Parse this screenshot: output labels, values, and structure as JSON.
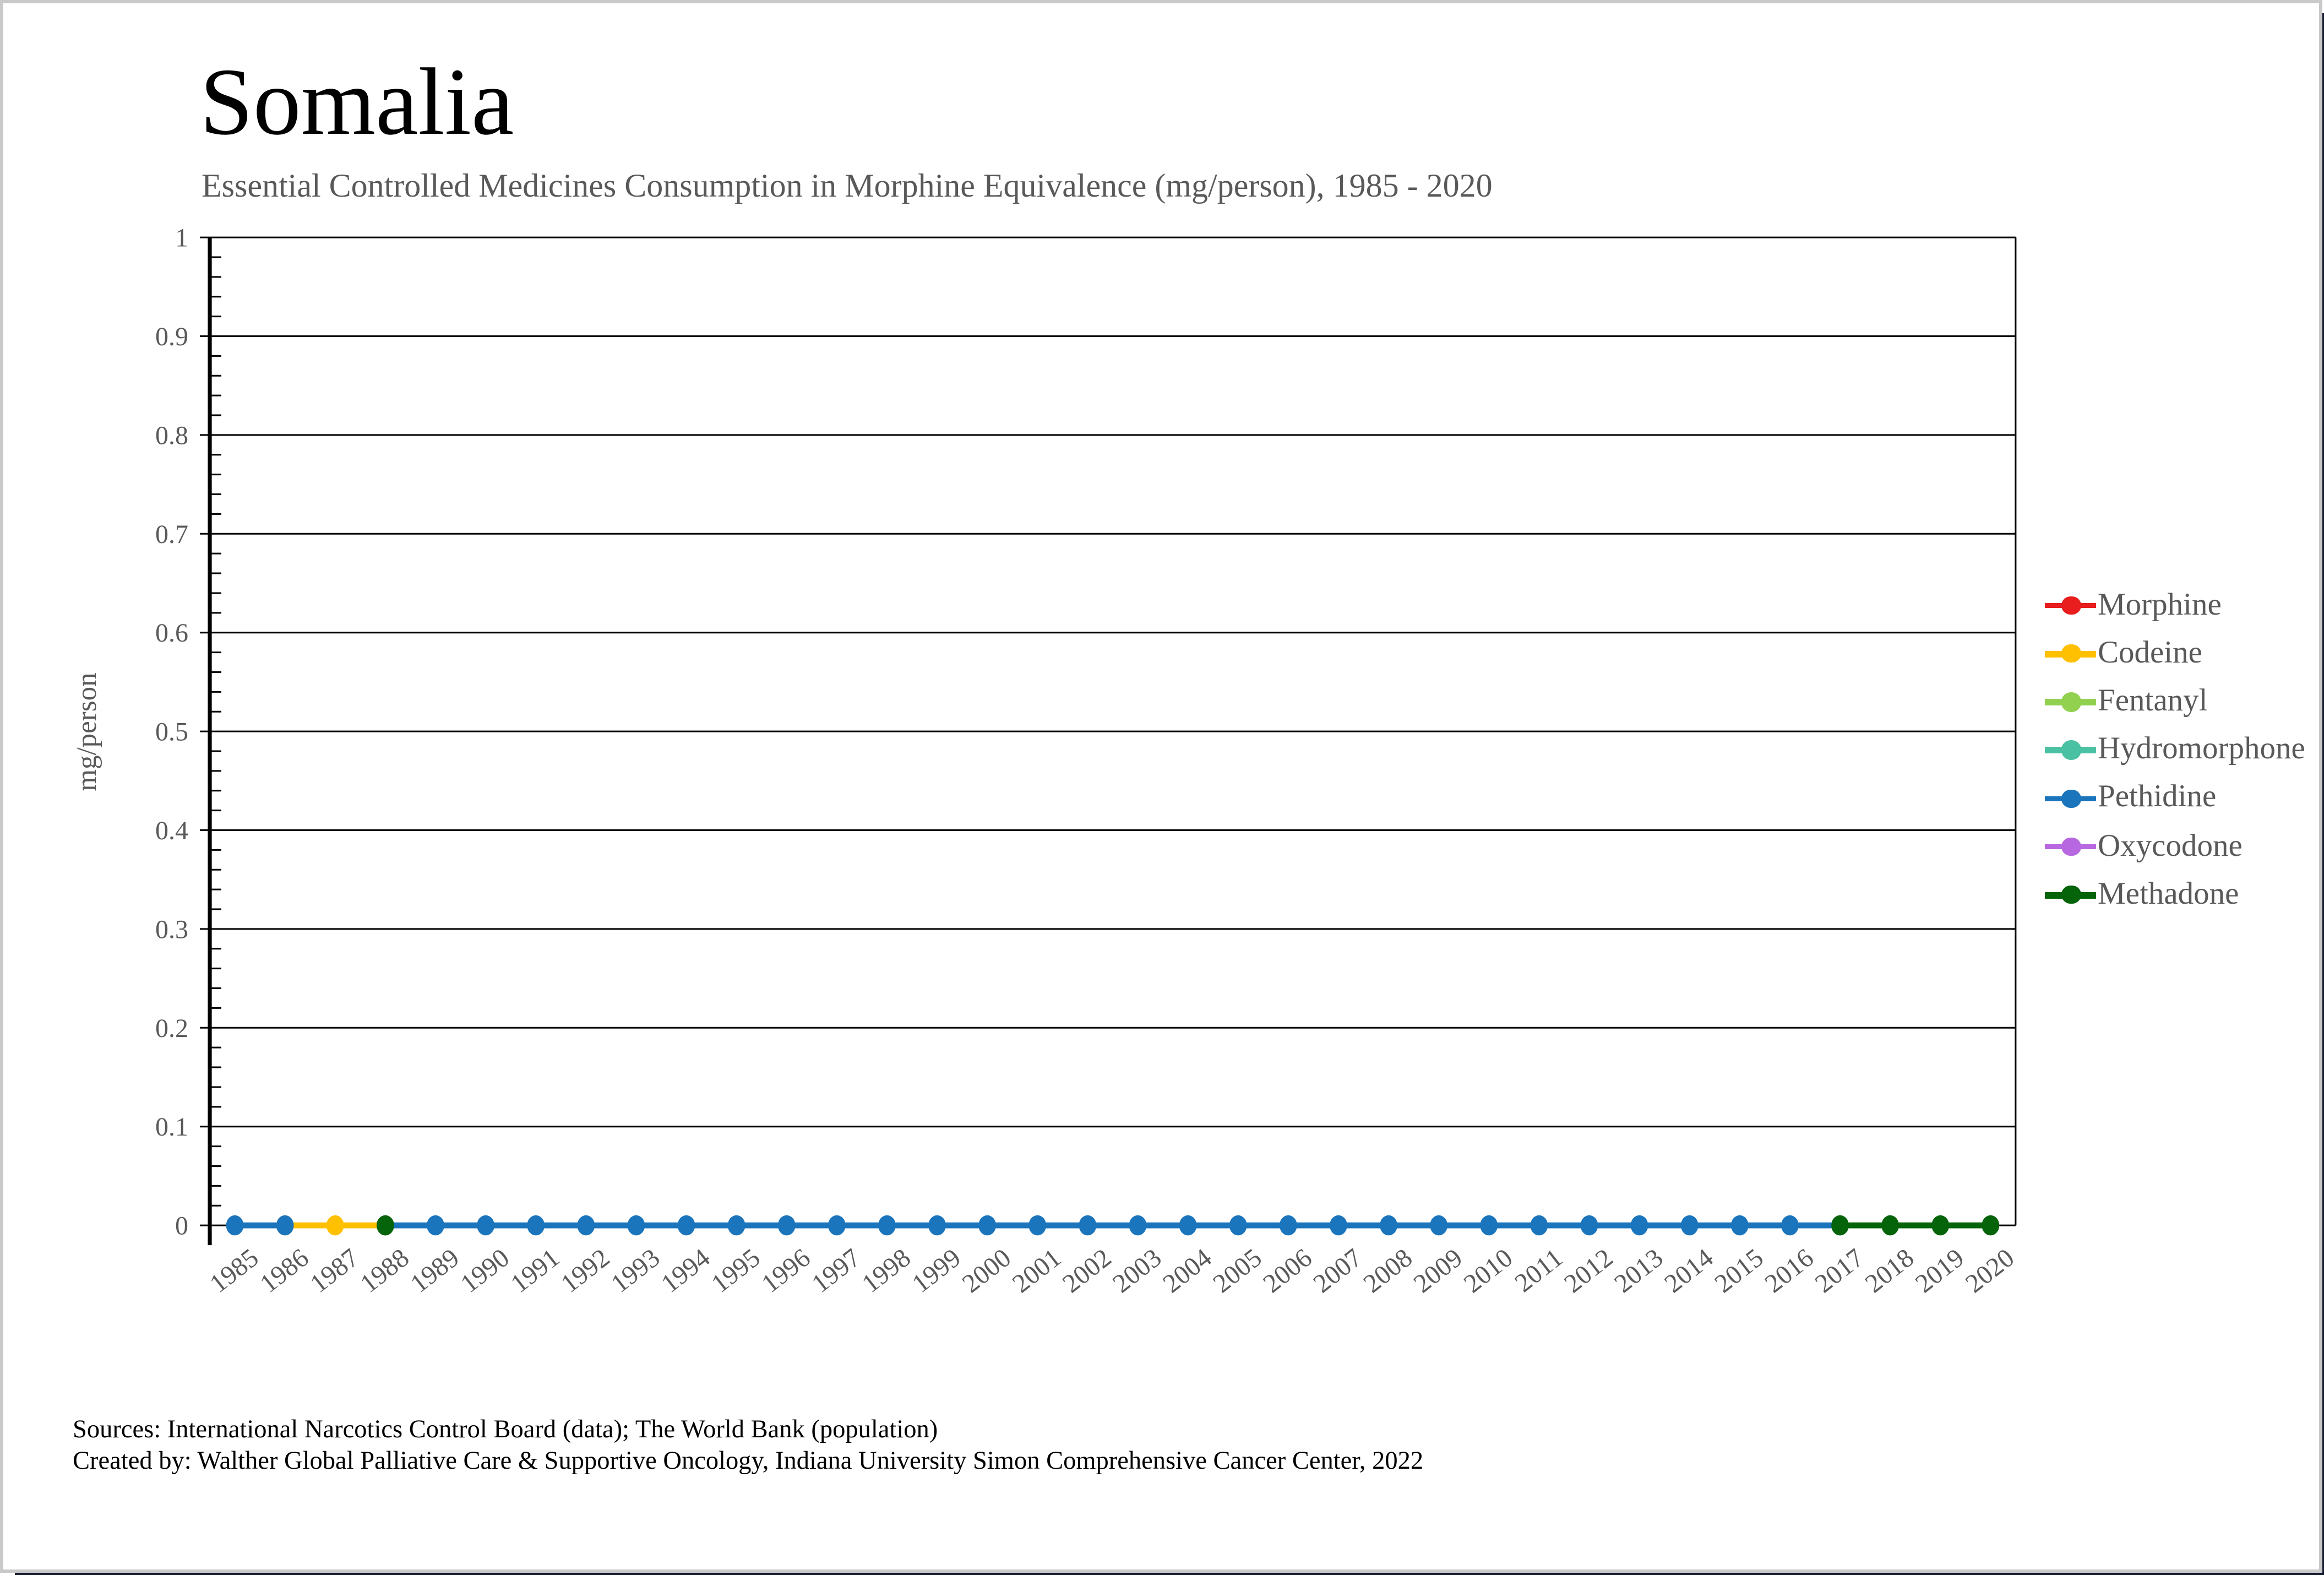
{
  "page": {
    "title": "Somalia",
    "subtitle": "Essential Controlled Medicines Consumption in Morphine Equivalence (mg/person), 1985 - 2020",
    "footer_line1": "Sources: International Narcotics Control Board (data); The World Bank (population)",
    "footer_line2": "Created by: Walther Global Palliative Care & Supportive Oncology, Indiana University Simon Comprehensive Cancer Center, 2022"
  },
  "chart_data": {
    "type": "line",
    "title": "Essential Controlled Medicines Consumption in Morphine Equivalence (mg/person), 1985 - 2020",
    "ylabel": "mg/person",
    "xlabel": "",
    "ylim": [
      0,
      1
    ],
    "grid": true,
    "legend_position": "right",
    "ytick_labels": [
      "0",
      "0.1",
      "0.2",
      "0.3",
      "0.4",
      "0.5",
      "0.6",
      "0.7",
      "0.8",
      "0.9",
      "1"
    ],
    "x": [
      1985,
      1986,
      1987,
      1988,
      1989,
      1990,
      1991,
      1992,
      1993,
      1994,
      1995,
      1996,
      1997,
      1998,
      1999,
      2000,
      2001,
      2002,
      2003,
      2004,
      2005,
      2006,
      2007,
      2008,
      2009,
      2010,
      2011,
      2012,
      2013,
      2014,
      2015,
      2016,
      2017,
      2018,
      2019,
      2020
    ],
    "series": [
      {
        "name": "Morphine",
        "color": "#e81d1d",
        "years": [],
        "values": []
      },
      {
        "name": "Codeine",
        "color": "#ffc000",
        "years": [
          1986,
          1987,
          1988
        ],
        "values": [
          0,
          0,
          0
        ]
      },
      {
        "name": "Fentanyl",
        "color": "#92d050",
        "years": [],
        "values": []
      },
      {
        "name": "Hydromorphone",
        "color": "#4ac1a2",
        "years": [],
        "values": []
      },
      {
        "name": "Pethidine",
        "color": "#1b75bc",
        "years": [
          1985,
          1986,
          1988,
          1989,
          1990,
          1991,
          1992,
          1993,
          1994,
          1995,
          1996,
          1997,
          1998,
          1999,
          2000,
          2001,
          2002,
          2003,
          2004,
          2005,
          2006,
          2007,
          2008,
          2009,
          2010,
          2011,
          2012,
          2013,
          2014,
          2015,
          2016,
          2017
        ],
        "values": [
          0,
          0,
          0,
          0,
          0,
          0,
          0,
          0,
          0,
          0,
          0,
          0,
          0,
          0,
          0,
          0,
          0,
          0,
          0,
          0,
          0,
          0,
          0,
          0,
          0,
          0,
          0,
          0,
          0,
          0,
          0,
          0
        ]
      },
      {
        "name": "Oxycodone",
        "color": "#b767df",
        "years": [],
        "values": []
      },
      {
        "name": "Methadone",
        "color": "#056309",
        "years": [
          1988,
          2017,
          2018,
          2019,
          2020
        ],
        "values": [
          0,
          0,
          0,
          0,
          0
        ]
      }
    ]
  }
}
